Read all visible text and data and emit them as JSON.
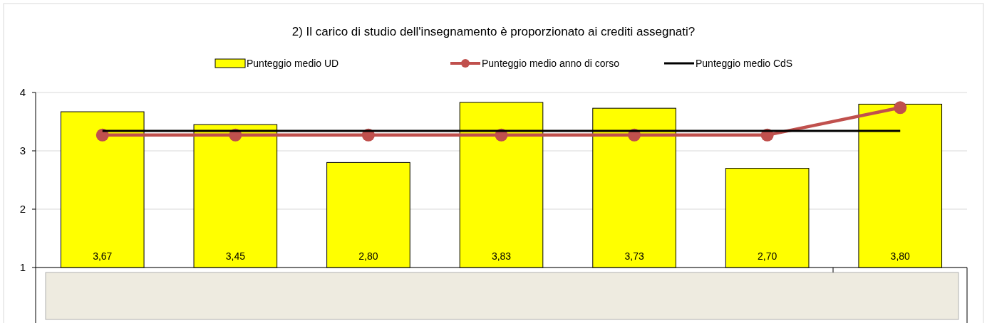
{
  "chart_data": {
    "type": "bar",
    "title": "2) Il carico di studio dell'insegnamento è proporzionato ai crediti assegnati?",
    "categories": [
      null,
      null,
      null,
      null,
      null,
      null,
      null
    ],
    "series": [
      {
        "name": "Punteggio medio UD",
        "color": "#ffff00",
        "values": [
          3.67,
          3.45,
          2.8,
          3.83,
          3.73,
          2.7,
          3.8
        ],
        "value_labels": [
          "3,67",
          "3,45",
          "2,80",
          "3,83",
          "3,73",
          "2,70",
          "3,80"
        ]
      },
      {
        "name": "Punteggio medio anno di corso",
        "type": "line",
        "color": "#c0504d",
        "marker": "circle",
        "values": [
          3.27,
          3.27,
          3.27,
          3.27,
          3.27,
          3.27,
          3.74
        ]
      },
      {
        "name": "Punteggio medio CdS",
        "type": "line",
        "color": "#000000",
        "marker": "none",
        "values": [
          3.34,
          3.34,
          3.34,
          3.34,
          3.34,
          3.34,
          3.34
        ]
      }
    ],
    "ylim": [
      1,
      4
    ],
    "yticks": [
      1,
      2,
      3,
      4
    ],
    "grid": "y",
    "legend": "top"
  }
}
